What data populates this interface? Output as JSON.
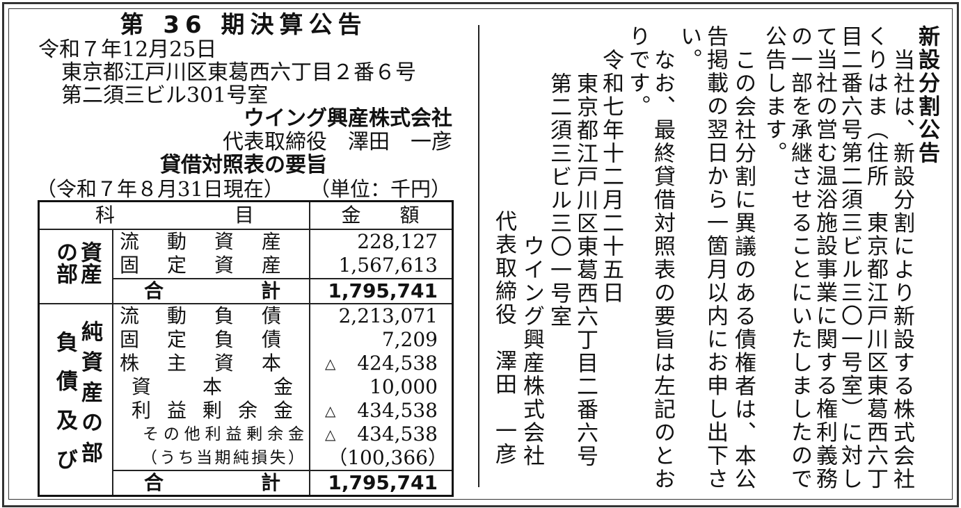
{
  "left": {
    "title": "第 36 期決算公告",
    "date": "令和７年12月25日",
    "address1": "東京都江戸川区東葛西六丁目２番６号",
    "address2": "第二須三ビル301号室",
    "company": "ウイング興産株式会社",
    "representative": "代表取締役　澤田　一彦",
    "subtitle": "貸借対照表の要旨",
    "as_of": "（令和７年８月31日現在）",
    "unit": "（単位：千円）"
  },
  "table": {
    "header": {
      "item_a": "科",
      "item_b": "目",
      "amount": "金　　額"
    },
    "assets_section": {
      "label": "資産の部"
    },
    "assets_rows": [
      {
        "label": "流動資産",
        "value": "228,127"
      },
      {
        "label": "固定資産",
        "value": "1,567,613"
      }
    ],
    "assets_total": {
      "label": "合計",
      "value": "1,795,741"
    },
    "liabilities_section": {
      "label_left": "負債及び",
      "label_right": "純資産の部"
    },
    "liabilities_rows": [
      {
        "label": "流動負債",
        "value": "2,213,071",
        "negative": ""
      },
      {
        "label": "固定負債",
        "value": "7,209",
        "negative": ""
      },
      {
        "label": "株主資本",
        "value": "424,538",
        "negative": "△"
      },
      {
        "label": "資本金",
        "value": "10,000",
        "negative": ""
      },
      {
        "label": "利益剰余金",
        "value": "434,538",
        "negative": "△"
      },
      {
        "label": "その他利益剰余金",
        "value": "434,538",
        "negative": "△"
      },
      {
        "label": "（うち当期純損失）",
        "value": "（100,366）",
        "negative": ""
      }
    ],
    "liabilities_total": {
      "label": "合計",
      "value": "1,795,741"
    }
  },
  "right": {
    "title": "新設分割公告",
    "columns": [
      "当社は、新設分割により新設する株式会社",
      "くりはま（住所　東京都江戸川区東葛西六丁",
      "目二番六号第二須三ビル三〇一号室）に対し",
      "て当社の営む温浴施設事業に関する権利義務",
      "の一部を承継させることにいたしましたので",
      "公告します。",
      "この会社分割に異議のある債権者は、本公",
      "告掲載の翌日から一箇月以内にお申し出下さ",
      "い。",
      "なお、最終貸借対照表の要旨は左記のとお",
      "りです。",
      "令和七年十二月二十五日",
      "東京都江戸川区東葛西六丁目二番六号",
      "第二須三ビル三〇一号室",
      "ウイング興産株式会社",
      "代表取締役　澤田　一彦"
    ]
  }
}
